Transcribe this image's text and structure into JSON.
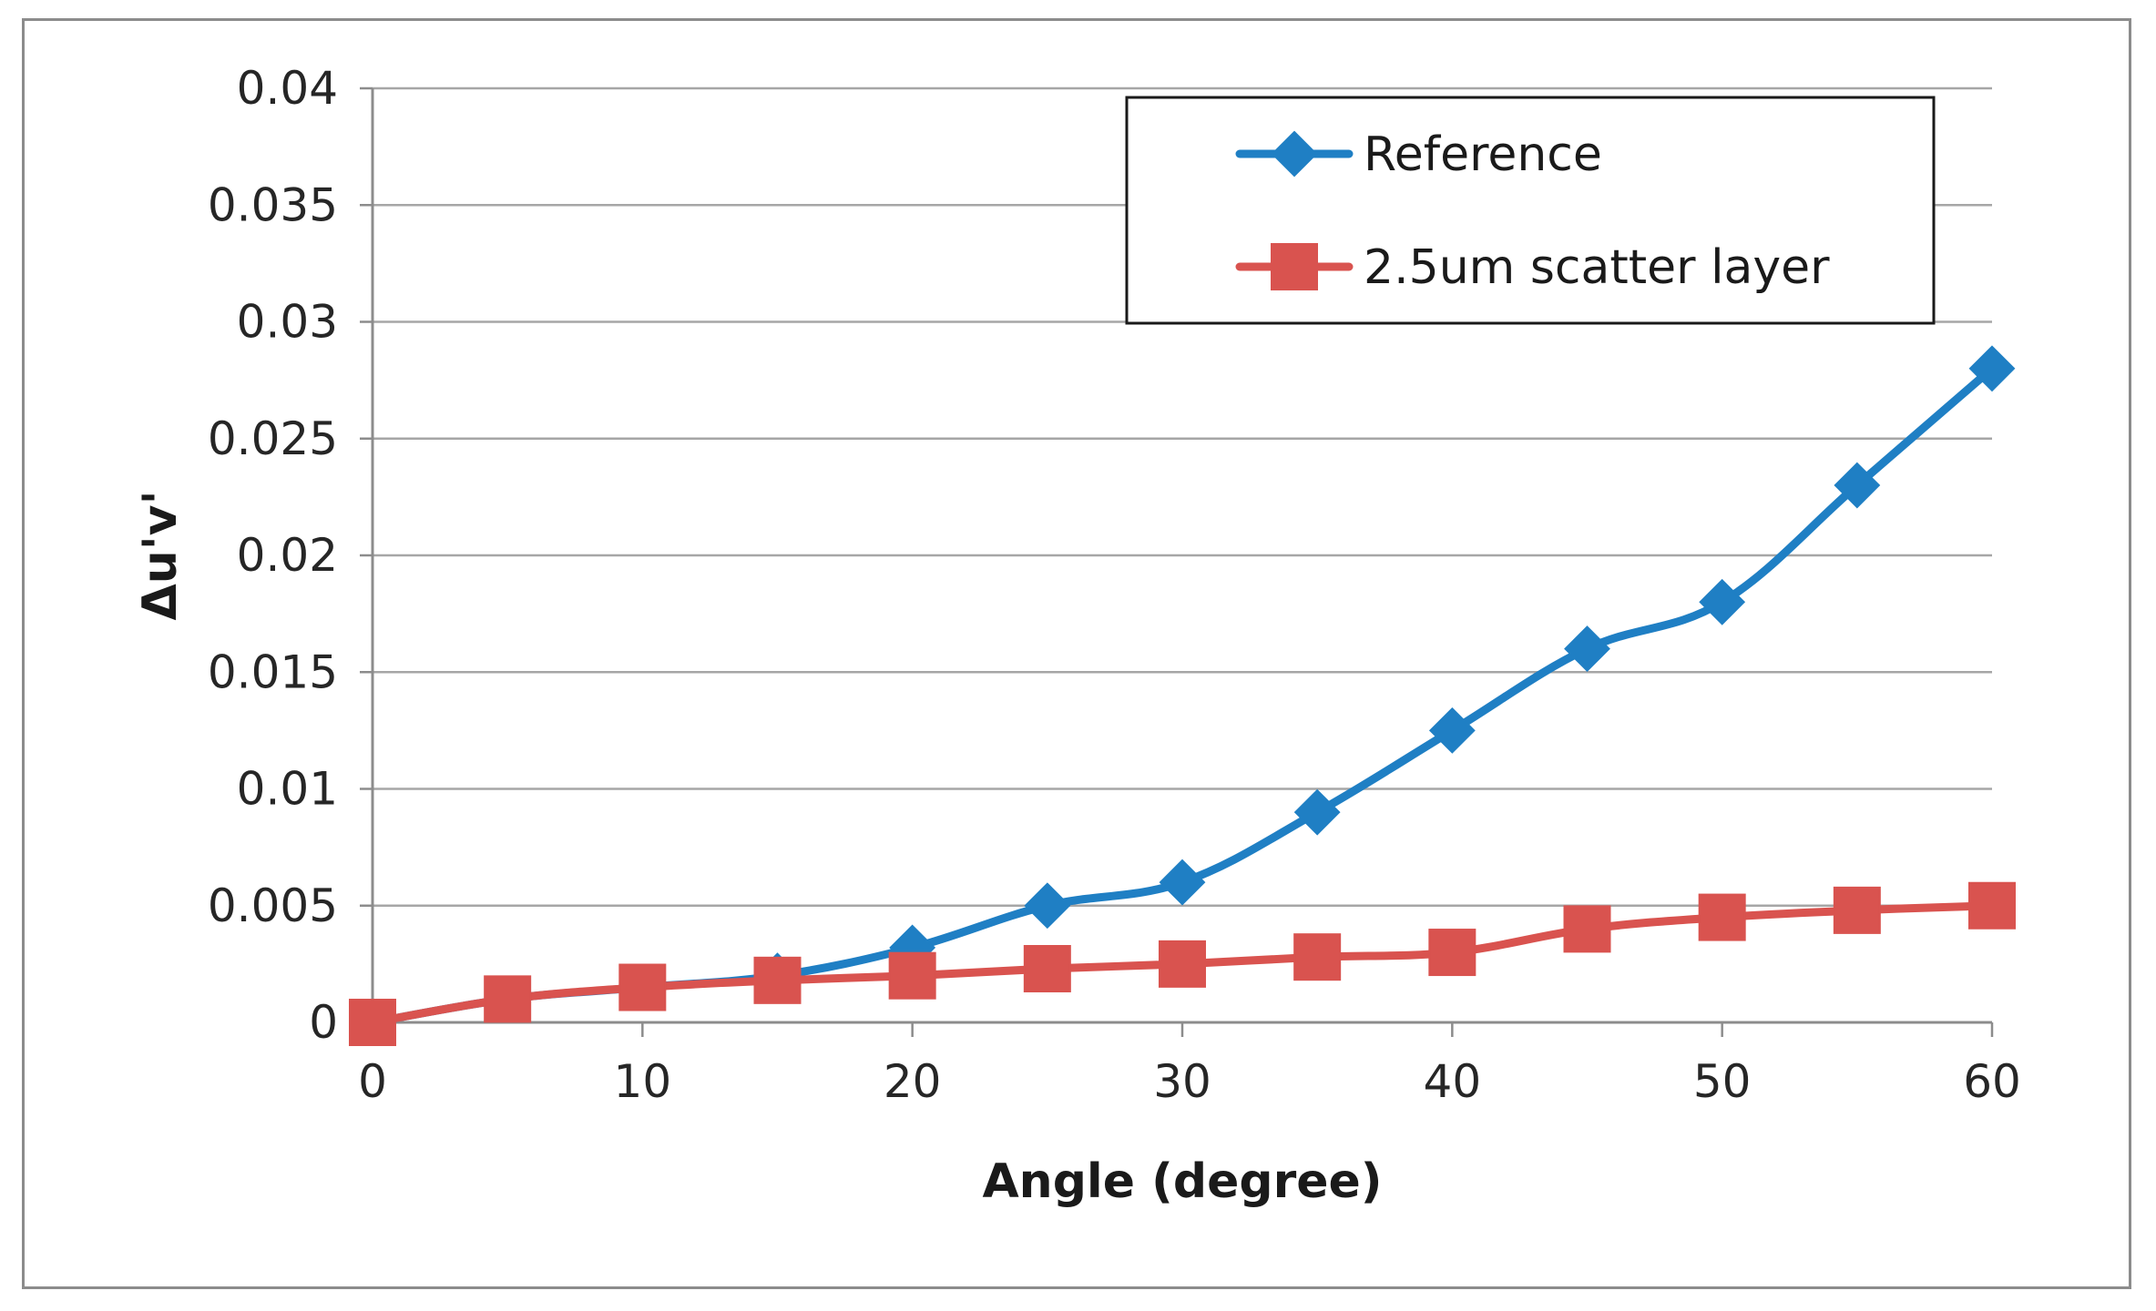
{
  "chart_data": {
    "type": "line",
    "xlabel": "Angle (degree)",
    "ylabel": "Δu'v'",
    "x": [
      0,
      5,
      10,
      15,
      20,
      25,
      30,
      35,
      40,
      45,
      50,
      55,
      60
    ],
    "xlim": [
      0,
      60
    ],
    "ylim": [
      0,
      0.04
    ],
    "x_ticks": [
      0,
      10,
      20,
      30,
      40,
      50,
      60
    ],
    "x_tick_labels": [
      "0",
      "10",
      "20",
      "30",
      "40",
      "50",
      "60"
    ],
    "y_ticks": [
      0,
      0.005,
      0.01,
      0.015,
      0.02,
      0.025,
      0.03,
      0.035,
      0.04
    ],
    "y_tick_labels": [
      "0",
      "0.005",
      "0.01",
      "0.015",
      "0.02",
      "0.025",
      "0.03",
      "0.035",
      "0.04"
    ],
    "grid": "horizontal",
    "legend_position": "top-right",
    "series": [
      {
        "name": "Reference",
        "marker": "diamond",
        "color": "#1f7fc4",
        "values": [
          0,
          0.001,
          0.0015,
          0.002,
          0.0032,
          0.005,
          0.006,
          0.009,
          0.0125,
          0.016,
          0.018,
          0.023,
          0.028
        ]
      },
      {
        "name": "2.5um scatter layer",
        "marker": "square",
        "color": "#d9534f",
        "values": [
          0,
          0.001,
          0.0015,
          0.0018,
          0.002,
          0.0023,
          0.0025,
          0.0028,
          0.003,
          0.004,
          0.0045,
          0.0048,
          0.005
        ]
      }
    ]
  }
}
